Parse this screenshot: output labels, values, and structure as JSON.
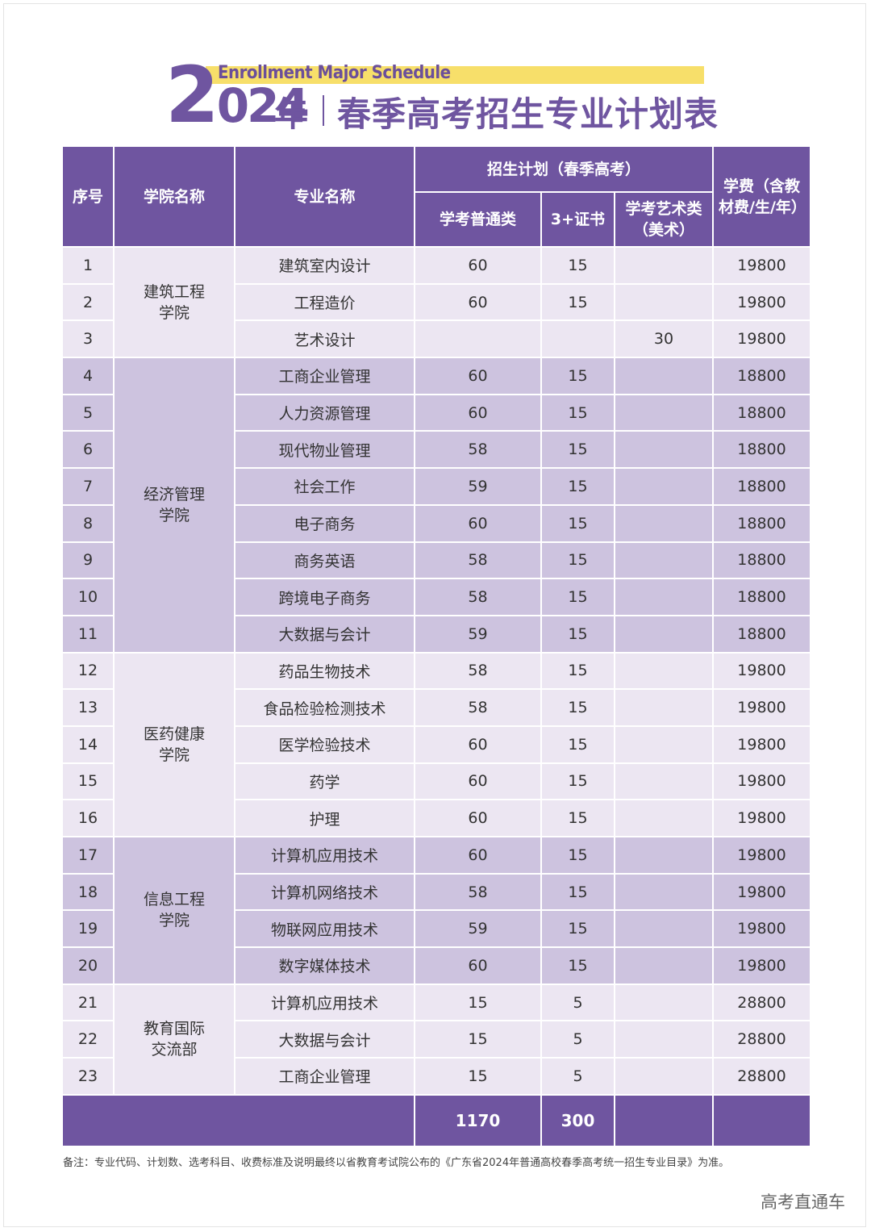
{
  "header": {
    "subtitle": "Enrollment Major Schedule",
    "year": "2024",
    "year_suffix": "年",
    "title": "春季高考招生专业计划表"
  },
  "table": {
    "columns": {
      "seq": "序号",
      "college": "学院名称",
      "major": "专业名称",
      "plan": "招生计划（春季高考）",
      "general": "学考普通类",
      "cert": "3+证书",
      "art": "学考艺术类（美术）",
      "fee": "学费（含教材费/生/年）"
    },
    "groups": [
      {
        "college": "建筑工程学院",
        "rows": [
          [
            1,
            "建筑室内设计",
            60,
            15,
            null,
            19800
          ],
          [
            2,
            "工程造价",
            60,
            15,
            null,
            19800
          ],
          [
            3,
            "艺术设计",
            null,
            null,
            30,
            19800
          ]
        ]
      },
      {
        "college": "经济管理学院",
        "rows": [
          [
            4,
            "工商企业管理",
            60,
            15,
            null,
            18800
          ],
          [
            5,
            "人力资源管理",
            60,
            15,
            null,
            18800
          ],
          [
            6,
            "现代物业管理",
            58,
            15,
            null,
            18800
          ],
          [
            7,
            "社会工作",
            59,
            15,
            null,
            18800
          ],
          [
            8,
            "电子商务",
            60,
            15,
            null,
            18800
          ],
          [
            9,
            "商务英语",
            58,
            15,
            null,
            18800
          ],
          [
            10,
            "跨境电子商务",
            58,
            15,
            null,
            18800
          ],
          [
            11,
            "大数据与会计",
            59,
            15,
            null,
            18800
          ]
        ]
      },
      {
        "college": "医药健康学院",
        "rows": [
          [
            12,
            "药品生物技术",
            58,
            15,
            null,
            19800
          ],
          [
            13,
            "食品检验检测技术",
            58,
            15,
            null,
            19800
          ],
          [
            14,
            "医学检验技术",
            60,
            15,
            null,
            19800
          ],
          [
            15,
            "药学",
            60,
            15,
            null,
            19800
          ],
          [
            16,
            "护理",
            60,
            15,
            null,
            19800
          ]
        ]
      },
      {
        "college": "信息工程学院",
        "rows": [
          [
            17,
            "计算机应用技术",
            60,
            15,
            null,
            19800
          ],
          [
            18,
            "计算机网络技术",
            58,
            15,
            null,
            19800
          ],
          [
            19,
            "物联网应用技术",
            59,
            15,
            null,
            19800
          ],
          [
            20,
            "数字媒体技术",
            60,
            15,
            null,
            19800
          ]
        ]
      },
      {
        "college": "教育国际交流部",
        "rows": [
          [
            21,
            "计算机应用技术",
            15,
            5,
            null,
            28800
          ],
          [
            22,
            "大数据与会计",
            15,
            5,
            null,
            28800
          ],
          [
            23,
            "工商企业管理",
            15,
            5,
            null,
            28800
          ]
        ]
      }
    ],
    "totals": {
      "general": 1170,
      "cert": 300
    }
  },
  "footnote": "备注：专业代码、计划数、选考科目、收费标准及说明最终以省教育考试院公布的《广东省2024年普通高校春季高考统一招生专业目录》为准。",
  "watermark": "高考直通车"
}
